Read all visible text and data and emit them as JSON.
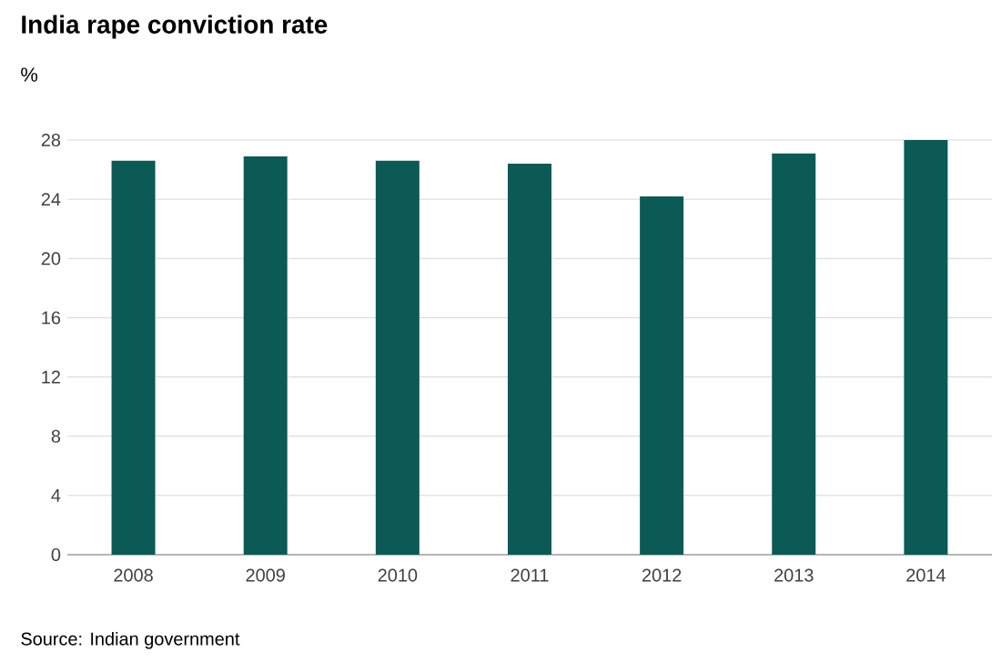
{
  "chart_data": {
    "type": "bar",
    "title": "India rape conviction rate",
    "ylabel": "%",
    "categories": [
      "2008",
      "2009",
      "2010",
      "2011",
      "2012",
      "2013",
      "2014"
    ],
    "values": [
      26.6,
      26.9,
      26.6,
      26.4,
      24.2,
      27.1,
      28.0
    ],
    "color": "#0b5a55",
    "ylim": [
      0,
      28
    ],
    "yticks": [
      0,
      4,
      8,
      12,
      16,
      20,
      24,
      28
    ],
    "grid": "y",
    "annotations": [
      "Source: Indian government"
    ]
  }
}
